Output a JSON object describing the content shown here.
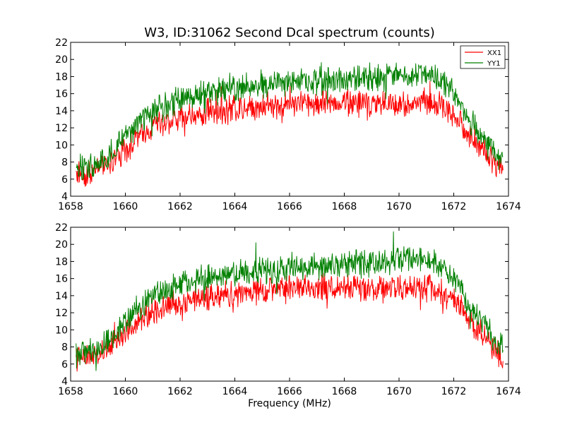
{
  "chart_data": {
    "type": "line",
    "title": "W3, ID:31062 Second Dcal spectrum (counts)",
    "xlabel": "Frequency (MHz)",
    "legend": {
      "placement": "top-right",
      "entries": [
        "XX1",
        "YY1"
      ]
    },
    "series_colors": {
      "XX1": "#ff0000",
      "YY1": "#008000"
    },
    "xlim": [
      1658,
      1674
    ],
    "ylim": [
      4,
      22
    ],
    "x_ticks": [
      "1658",
      "1660",
      "1662",
      "1664",
      "1666",
      "1668",
      "1670",
      "1672",
      "1674"
    ],
    "y_ticks": [
      "4",
      "6",
      "8",
      "10",
      "12",
      "14",
      "16",
      "18",
      "20",
      "22"
    ],
    "grid": false,
    "panels": [
      {
        "series": [
          {
            "name": "XX1",
            "x": [
              1658.2,
              1658.5,
              1659.0,
              1659.5,
              1660.0,
              1660.5,
              1661.0,
              1661.5,
              1662.0,
              1662.5,
              1663.0,
              1663.5,
              1664.0,
              1664.5,
              1665.0,
              1665.5,
              1666.0,
              1666.5,
              1667.0,
              1667.5,
              1668.0,
              1668.5,
              1669.0,
              1669.5,
              1670.0,
              1670.5,
              1671.0,
              1671.5,
              1672.0,
              1672.5,
              1673.0,
              1673.5,
              1673.8
            ],
            "y": [
              6.8,
              6.6,
              7.0,
              8.0,
              9.5,
              11.0,
              12.2,
              12.8,
              13.2,
              13.5,
              13.8,
              14.0,
              14.2,
              14.4,
              14.6,
              14.7,
              14.8,
              14.9,
              15.0,
              15.0,
              15.0,
              14.9,
              14.8,
              14.8,
              14.8,
              14.9,
              15.0,
              14.6,
              13.6,
              11.5,
              9.6,
              7.8,
              6.8
            ]
          },
          {
            "name": "YY1",
            "x": [
              1658.2,
              1658.5,
              1659.0,
              1659.5,
              1660.0,
              1660.5,
              1661.0,
              1661.5,
              1662.0,
              1662.5,
              1663.0,
              1663.5,
              1664.0,
              1664.5,
              1665.0,
              1665.5,
              1666.0,
              1666.5,
              1667.0,
              1667.5,
              1668.0,
              1668.5,
              1669.0,
              1669.5,
              1670.0,
              1670.5,
              1671.0,
              1671.5,
              1672.0,
              1672.5,
              1673.0,
              1673.5,
              1673.8
            ],
            "y": [
              7.4,
              7.3,
              7.8,
              9.0,
              10.8,
              12.6,
              14.0,
              14.8,
              15.3,
              15.8,
              16.1,
              16.4,
              16.6,
              16.8,
              17.0,
              17.1,
              17.2,
              17.3,
              17.4,
              17.5,
              17.6,
              17.8,
              17.9,
              18.0,
              18.1,
              18.2,
              18.1,
              17.6,
              16.2,
              13.4,
              11.0,
              9.0,
              8.0
            ]
          }
        ]
      },
      {
        "series": [
          {
            "name": "XX1",
            "x": [
              1658.2,
              1658.5,
              1659.0,
              1659.5,
              1660.0,
              1660.5,
              1661.0,
              1661.5,
              1662.0,
              1662.5,
              1663.0,
              1663.5,
              1664.0,
              1664.5,
              1665.0,
              1665.5,
              1666.0,
              1666.5,
              1667.0,
              1667.5,
              1668.0,
              1668.5,
              1669.0,
              1669.5,
              1670.0,
              1670.5,
              1671.0,
              1671.5,
              1672.0,
              1672.5,
              1673.0,
              1673.5,
              1673.8
            ],
            "y": [
              6.8,
              6.6,
              7.0,
              8.0,
              9.5,
              11.0,
              12.2,
              12.8,
              13.2,
              13.5,
              13.8,
              14.0,
              14.2,
              14.4,
              14.6,
              14.7,
              14.8,
              14.9,
              15.0,
              15.0,
              15.0,
              14.9,
              14.8,
              14.8,
              14.8,
              14.9,
              15.0,
              14.6,
              13.6,
              11.5,
              9.6,
              7.8,
              6.8
            ]
          },
          {
            "name": "YY1",
            "x": [
              1658.2,
              1658.5,
              1659.0,
              1659.5,
              1660.0,
              1660.5,
              1661.0,
              1661.5,
              1662.0,
              1662.5,
              1663.0,
              1663.5,
              1664.0,
              1664.5,
              1665.0,
              1665.5,
              1666.0,
              1666.5,
              1667.0,
              1667.5,
              1668.0,
              1668.5,
              1669.0,
              1669.5,
              1670.0,
              1670.5,
              1671.0,
              1671.5,
              1672.0,
              1672.5,
              1673.0,
              1673.5,
              1673.8
            ],
            "y": [
              7.4,
              7.3,
              7.8,
              9.0,
              10.8,
              12.6,
              14.0,
              14.8,
              15.3,
              15.8,
              16.1,
              16.4,
              16.6,
              16.8,
              17.0,
              17.1,
              17.2,
              17.3,
              17.4,
              17.5,
              17.6,
              17.8,
              17.9,
              18.0,
              18.1,
              18.2,
              18.1,
              17.6,
              16.2,
              13.4,
              11.0,
              9.0,
              8.0
            ]
          }
        ]
      }
    ]
  }
}
